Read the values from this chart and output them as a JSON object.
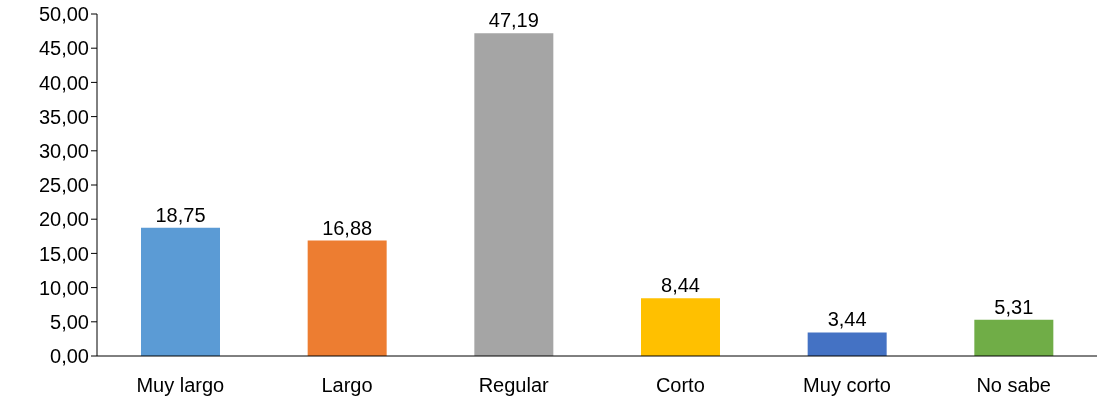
{
  "chart_data": {
    "type": "bar",
    "categories": [
      "Muy largo",
      "Largo",
      "Regular",
      "Corto",
      "Muy corto",
      "No sabe"
    ],
    "values": [
      18.75,
      16.88,
      47.19,
      8.44,
      3.44,
      5.31
    ],
    "colors": [
      "#5b9bd5",
      "#ed7d31",
      "#a5a5a5",
      "#ffc000",
      "#4472c4",
      "#70ad47"
    ],
    "value_labels": [
      "18,75",
      "16,88",
      "47,19",
      "8,44",
      "3,44",
      "5,31"
    ],
    "ylim": [
      0,
      50
    ],
    "yticks": [
      {
        "value": 0,
        "label": "0,00"
      },
      {
        "value": 5,
        "label": "5,00"
      },
      {
        "value": 10,
        "label": "10,00"
      },
      {
        "value": 15,
        "label": "15,00"
      },
      {
        "value": 20,
        "label": "20,00"
      },
      {
        "value": 25,
        "label": "25,00"
      },
      {
        "value": 30,
        "label": "30,00"
      },
      {
        "value": 35,
        "label": "35,00"
      },
      {
        "value": 40,
        "label": "40,00"
      },
      {
        "value": 45,
        "label": "45,00"
      },
      {
        "value": 50,
        "label": "50,00"
      }
    ],
    "grid": false,
    "legend": false
  }
}
